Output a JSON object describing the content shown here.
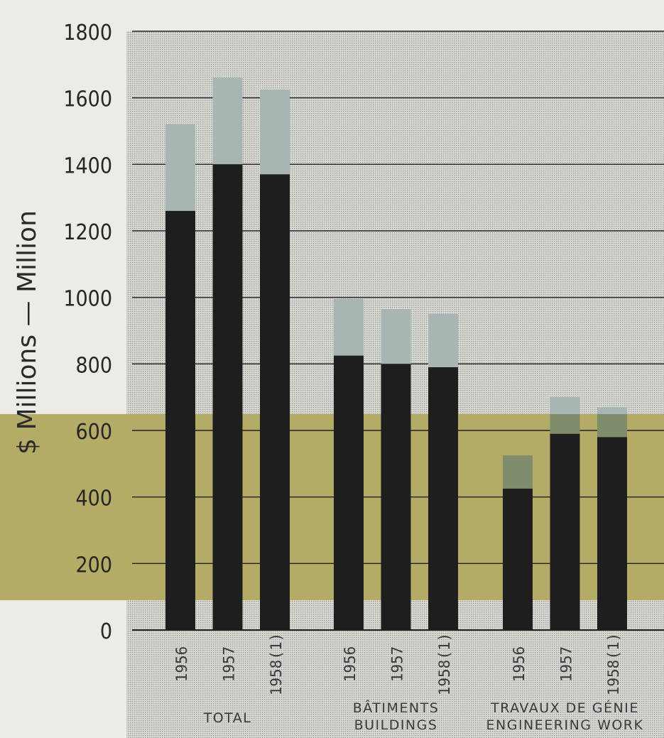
{
  "chart_data": {
    "type": "bar",
    "stacked": true,
    "title": "",
    "ylabel": "$ Millions — Million",
    "ylim": [
      0,
      1800
    ],
    "yticks": [
      0,
      200,
      400,
      600,
      800,
      1000,
      1200,
      1400,
      1600,
      1800
    ],
    "grid": true,
    "groups": [
      {
        "label_lines": [
          "TOTAL"
        ],
        "categories": [
          "1956",
          "1957",
          "1958(1)"
        ],
        "lower": [
          1260,
          1400,
          1370
        ],
        "total": [
          1520,
          1660,
          1625
        ]
      },
      {
        "label_lines": [
          "BÂTIMENTS",
          "BUILDINGS"
        ],
        "categories": [
          "1956",
          "1957",
          "1958(1)"
        ],
        "lower": [
          825,
          800,
          790
        ],
        "total": [
          995,
          965,
          950
        ]
      },
      {
        "label_lines": [
          "TRAVAUX DE GÉNIE",
          "ENGINEERING WORK"
        ],
        "categories": [
          "1956",
          "1957",
          "1958(1)"
        ],
        "lower": [
          425,
          590,
          580
        ],
        "total": [
          525,
          700,
          670
        ]
      }
    ],
    "colors": {
      "lower": "#1f1e1f",
      "upper": "#a7b6b4",
      "upper_on_band": "#7f8d6c",
      "band": "#b3ab66",
      "plot_bg": "#cfcfcb",
      "grid": "#222222"
    }
  }
}
